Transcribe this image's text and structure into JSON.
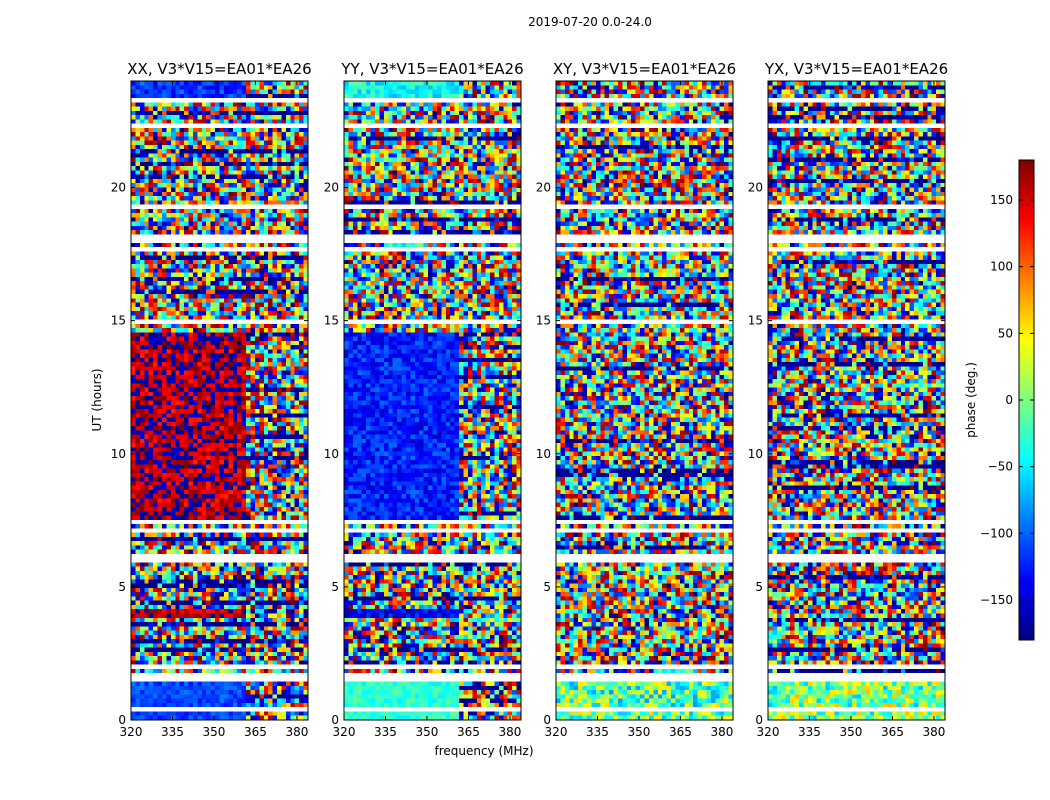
{
  "suptitle": "2019-07-20 0.0-24.0",
  "chart_data": {
    "type": "heatmap",
    "xlabel": "frequency (MHz)",
    "ylabel": "UT (hours)",
    "xlim": [
      320,
      384
    ],
    "ylim": [
      0,
      24
    ],
    "x_ticks": [
      320,
      335,
      350,
      365,
      380
    ],
    "y_ticks": [
      0,
      5,
      10,
      15,
      20
    ],
    "colorbar": {
      "label": "phase (deg.)",
      "range": [
        -180,
        180
      ],
      "ticks": [
        150,
        100,
        50,
        0,
        -50,
        -100,
        -150
      ],
      "tick_labels": [
        "150",
        "100",
        "50",
        "0",
        "−50",
        "−100",
        "−150"
      ],
      "colormap": [
        "#00007f",
        "#0000ff",
        "#007fff",
        "#00ffff",
        "#7fff7f",
        "#ffff00",
        "#ff7f00",
        "#ff0000",
        "#7f0000"
      ]
    },
    "flagged_color": "#ffffff",
    "flagged_ut_bands": [
      [
        0.4,
        0.5
      ],
      [
        1.5,
        1.7
      ],
      [
        2.0,
        2.1
      ],
      [
        3.3,
        3.4
      ],
      [
        5.3,
        5.35
      ],
      [
        6.0,
        6.2
      ],
      [
        7.0,
        7.2
      ],
      [
        7.4,
        7.6
      ],
      [
        8.3,
        8.35
      ],
      [
        14.9,
        15.1
      ],
      [
        17.6,
        17.8
      ],
      [
        18.0,
        18.2
      ],
      [
        19.2,
        19.3
      ],
      [
        22.2,
        22.4
      ],
      [
        23.2,
        23.3
      ]
    ],
    "panels": [
      {
        "title": "XX, V3*V15=EA01*EA26",
        "regions": [
          {
            "ut": [
              0.0,
              1.4
            ],
            "freq": [
              320,
              362
            ],
            "phase_mean": -110,
            "phase_spread": 20
          },
          {
            "ut": [
              7.5,
              14.5
            ],
            "freq": [
              320,
              362
            ],
            "phase_mean": 168,
            "phase_spread": 45
          },
          {
            "ut": [
              3.8,
              4.1
            ],
            "freq": [
              320,
              362
            ],
            "phase_mean": 160,
            "phase_spread": 30
          },
          {
            "ut": [
              23.3,
              24.0
            ],
            "freq": [
              320,
              362
            ],
            "phase_mean": -120,
            "phase_spread": 30
          }
        ]
      },
      {
        "title": "YY, V3*V15=EA01*EA26",
        "regions": [
          {
            "ut": [
              0.0,
              1.4
            ],
            "freq": [
              320,
              362
            ],
            "phase_mean": -30,
            "phase_spread": 20
          },
          {
            "ut": [
              7.5,
              14.5
            ],
            "freq": [
              320,
              362
            ],
            "phase_mean": -125,
            "phase_spread": 30
          },
          {
            "ut": [
              3.8,
              4.1
            ],
            "freq": [
              320,
              362
            ],
            "phase_mean": -140,
            "phase_spread": 30
          },
          {
            "ut": [
              23.3,
              24.0
            ],
            "freq": [
              320,
              362
            ],
            "phase_mean": -40,
            "phase_spread": 30
          }
        ]
      },
      {
        "title": "XY, V3*V15=EA01*EA26",
        "regions": [
          {
            "ut": [
              0.0,
              1.4
            ],
            "freq": [
              320,
              384
            ],
            "phase_mean": -10,
            "phase_spread": 70
          }
        ]
      },
      {
        "title": "YX, V3*V15=EA01*EA26",
        "regions": [
          {
            "ut": [
              0.0,
              1.4
            ],
            "freq": [
              320,
              384
            ],
            "phase_mean": 0,
            "phase_spread": 70
          }
        ]
      }
    ]
  }
}
